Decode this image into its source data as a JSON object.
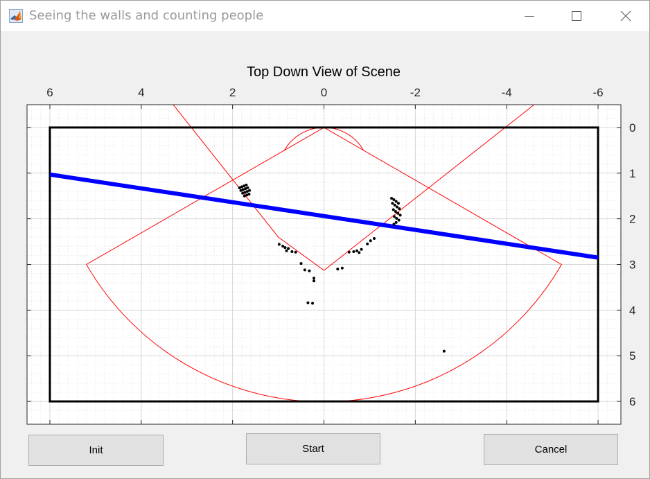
{
  "window": {
    "title": "Seeing the walls and counting people"
  },
  "buttons": {
    "init": "Init",
    "start": "Start",
    "cancel": "Cancel"
  },
  "colors": {
    "room": "#000000",
    "wall": "#0000ff",
    "fov": "#ff0000",
    "points": "#000000",
    "grid": "#d7d7d7"
  },
  "icons": {
    "app": "matlab-icon",
    "minimize": "minimize-icon",
    "maximize": "maximize-icon",
    "close": "close-icon"
  },
  "chart_data": {
    "type": "scatter",
    "title": "Top Down View of Scene",
    "x_ticks": [
      "6",
      "4",
      "2",
      "0",
      "-2",
      "-4",
      "-6"
    ],
    "y_ticks": [
      "0",
      "1",
      "2",
      "3",
      "4",
      "5",
      "6"
    ],
    "xlim": [
      6.5,
      -6.5
    ],
    "ylim": [
      6.5,
      -0.5
    ],
    "x_axis_position": "top",
    "y_axis_position": "right",
    "grid": true,
    "minor_grid": true,
    "room_rectangle": {
      "x": [
        6,
        -6
      ],
      "y": [
        0,
        6
      ]
    },
    "wall_line": {
      "x": [
        6.0,
        -6.0
      ],
      "y": [
        1.03,
        2.85
      ]
    },
    "sensor_fov": {
      "outer_left_edge": [
        [
          0,
          0
        ],
        [
          5.2,
          3.0
        ]
      ],
      "outer_right_edge": [
        [
          0,
          0
        ],
        [
          -5.2,
          3.0
        ]
      ],
      "outer_arc_radius": 6.0,
      "inner_arc_radius": 1.0,
      "extended_lines": [
        [
          [
            3.3,
            -0.5
          ],
          [
            1.0,
            2.4
          ],
          [
            0,
            3.13
          ]
        ],
        [
          [
            -4.6,
            -0.5
          ],
          [
            0,
            3.13
          ]
        ]
      ]
    },
    "points": [
      [
        1.85,
        1.32
      ],
      [
        1.8,
        1.3
      ],
      [
        1.75,
        1.28
      ],
      [
        1.7,
        1.26
      ],
      [
        1.82,
        1.38
      ],
      [
        1.77,
        1.36
      ],
      [
        1.72,
        1.34
      ],
      [
        1.67,
        1.32
      ],
      [
        1.78,
        1.44
      ],
      [
        1.73,
        1.42
      ],
      [
        1.68,
        1.4
      ],
      [
        1.63,
        1.38
      ],
      [
        1.74,
        1.5
      ],
      [
        1.69,
        1.48
      ],
      [
        1.64,
        1.46
      ],
      [
        -1.48,
        1.55
      ],
      [
        -1.53,
        1.58
      ],
      [
        -1.58,
        1.62
      ],
      [
        -1.63,
        1.66
      ],
      [
        -1.5,
        1.66
      ],
      [
        -1.55,
        1.7
      ],
      [
        -1.6,
        1.74
      ],
      [
        -1.65,
        1.78
      ],
      [
        -1.52,
        1.8
      ],
      [
        -1.57,
        1.84
      ],
      [
        -1.62,
        1.88
      ],
      [
        -1.67,
        1.92
      ],
      [
        -1.54,
        1.95
      ],
      [
        -1.59,
        1.99
      ],
      [
        -1.64,
        2.03
      ],
      [
        -1.58,
        2.08
      ],
      [
        -1.53,
        2.12
      ],
      [
        0.98,
        2.56
      ],
      [
        0.9,
        2.6
      ],
      [
        0.85,
        2.63
      ],
      [
        0.82,
        2.7
      ],
      [
        0.78,
        2.65
      ],
      [
        0.7,
        2.72
      ],
      [
        0.62,
        2.73
      ],
      [
        0.5,
        2.98
      ],
      [
        0.42,
        3.12
      ],
      [
        0.32,
        3.14
      ],
      [
        0.22,
        3.3
      ],
      [
        0.22,
        3.36
      ],
      [
        0.35,
        3.84
      ],
      [
        0.25,
        3.85
      ],
      [
        -0.3,
        3.1
      ],
      [
        -0.4,
        3.08
      ],
      [
        -0.55,
        2.73
      ],
      [
        -0.65,
        2.72
      ],
      [
        -0.72,
        2.7
      ],
      [
        -0.77,
        2.74
      ],
      [
        -0.82,
        2.67
      ],
      [
        -0.95,
        2.55
      ],
      [
        -1.02,
        2.48
      ],
      [
        -1.1,
        2.43
      ],
      [
        -2.63,
        4.9
      ]
    ]
  }
}
